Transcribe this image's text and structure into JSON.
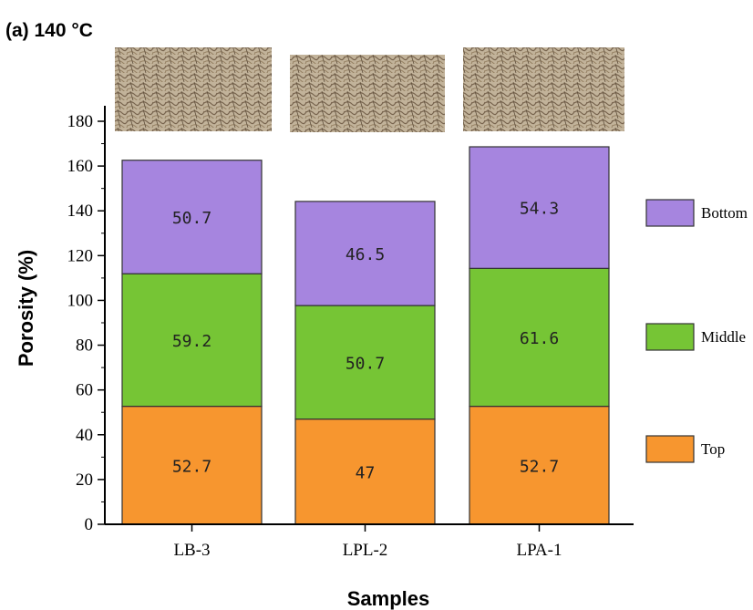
{
  "panel_label": "(a) 140 °C",
  "colors": {
    "Top": "#f7962f",
    "Middle": "#76c535",
    "Bottom": "#a685df",
    "sample_image_fill": "#cdbca3",
    "sample_image_fiber": "#6b5a44"
  },
  "chart_data": {
    "type": "bar",
    "stacked": true,
    "categories": [
      "LB-3",
      "LPL-2",
      "LPA-1"
    ],
    "series": [
      {
        "name": "Top",
        "values": [
          52.7,
          47,
          52.7
        ]
      },
      {
        "name": "Middle",
        "values": [
          59.2,
          50.7,
          61.6
        ]
      },
      {
        "name": "Bottom",
        "values": [
          50.7,
          46.5,
          54.3
        ]
      }
    ],
    "xlabel": "Samples",
    "ylabel": "Porosity (%)",
    "ylim": [
      0,
      180
    ],
    "yticks": [
      0,
      20,
      40,
      60,
      80,
      100,
      120,
      140,
      160,
      180
    ],
    "legend": {
      "placement": "right",
      "order": [
        "Bottom",
        "Middle",
        "Top"
      ]
    },
    "grid": false,
    "sample_images": [
      "LB-3",
      "LPL-2",
      "LPA-1"
    ]
  }
}
